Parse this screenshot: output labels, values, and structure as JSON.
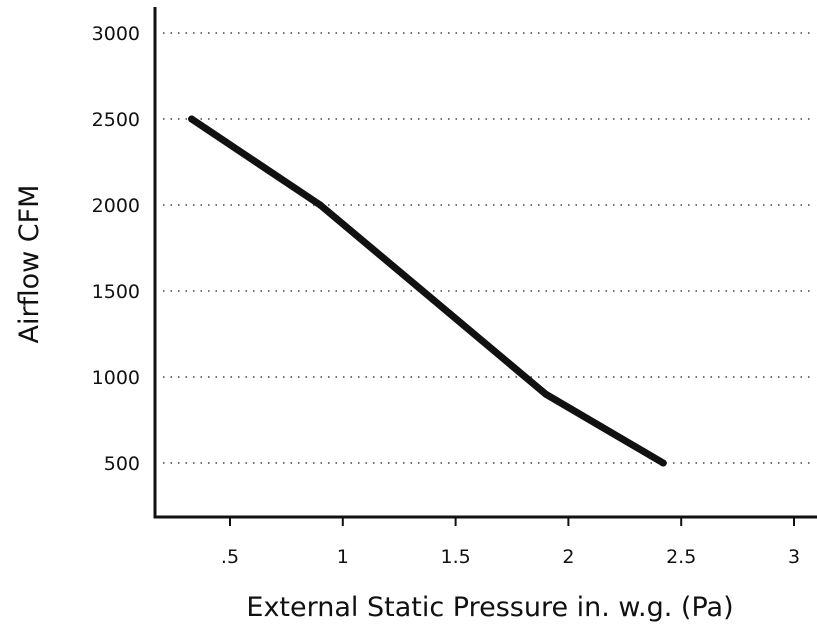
{
  "chart_data": {
    "type": "line",
    "title": "",
    "xlabel": "External Static Pressure in. w.g. (Pa)",
    "ylabel": "Airflow CFM",
    "x_ticks": [
      0.5,
      1,
      1.5,
      2,
      2.5,
      3
    ],
    "x_tick_labels": [
      ".5",
      "1",
      "1.5",
      "2",
      "2.5",
      "3"
    ],
    "y_ticks": [
      500,
      1000,
      1500,
      2000,
      2500,
      3000
    ],
    "y_tick_labels": [
      "500",
      "1000",
      "1500",
      "2000",
      "2500",
      "3000"
    ],
    "xlim": [
      0.1,
      3.1
    ],
    "ylim": [
      0,
      3100
    ],
    "grid": "horizontal dotted",
    "legend": "none",
    "line_color": "#111111",
    "series": [
      {
        "x": [
          0.33,
          0.9,
          1.4,
          1.9,
          2.42
        ],
        "values": [
          2500,
          2000,
          1450,
          900,
          500
        ]
      }
    ]
  }
}
